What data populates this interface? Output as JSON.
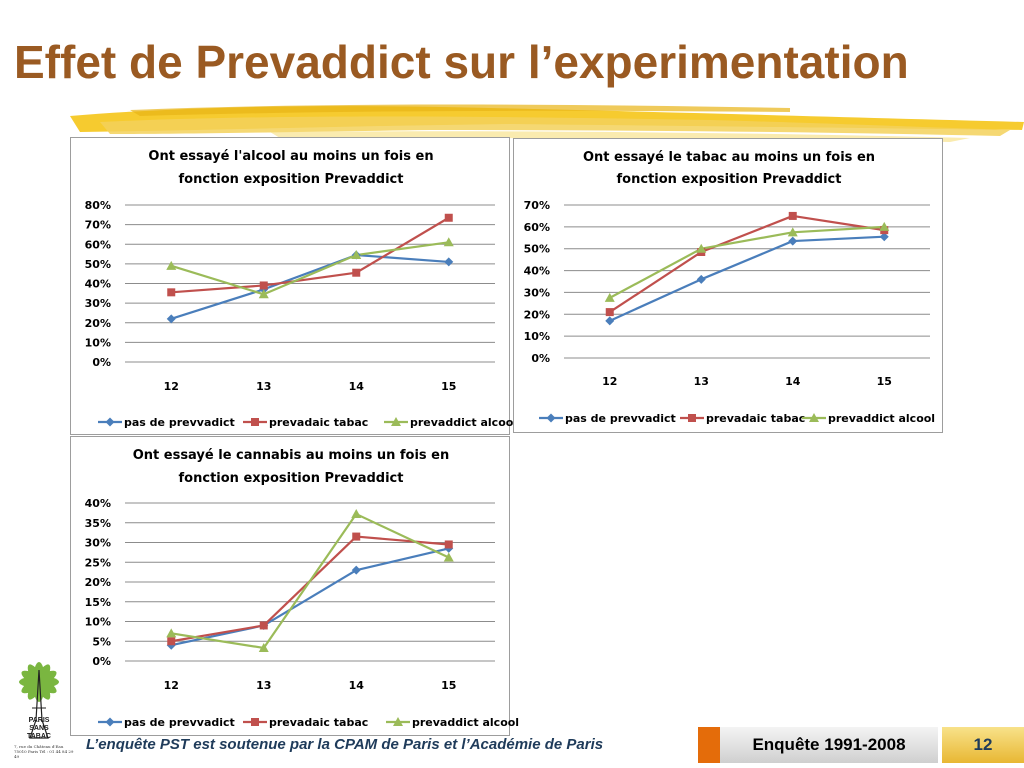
{
  "slide": {
    "title": "Effet de Prevaddict sur l’experimentation",
    "footer_note": "L’enquête PST est soutenue par la CPAM de Paris et l’Académie de Paris",
    "survey_label": "Enquête 1991-2008",
    "page_number": "12",
    "logo": {
      "text_lines": [
        "PARIS",
        "SANS",
        "TABAC"
      ],
      "address": "7, rue du Château d'Eau 75010 Paris Tél : 01 44 84 29 49"
    },
    "colors": {
      "title": "#9a5a22",
      "underline": "#f2c230",
      "accent_orange": "#e46c0a",
      "page_box": "#f0c53e"
    }
  },
  "chart_data": [
    {
      "type": "line",
      "title_lines": [
        "Ont  essayé l'alcool au moins un fois en",
        "fonction exposition Prevaddict"
      ],
      "categories": [
        "12",
        "13",
        "14",
        "15"
      ],
      "ylim": [
        0,
        0.8
      ],
      "yticks": [
        0,
        0.1,
        0.2,
        0.3,
        0.4,
        0.5,
        0.6,
        0.7,
        0.8
      ],
      "ytick_labels": [
        "0%",
        "10%",
        "20%",
        "30%",
        "40%",
        "50%",
        "60%",
        "70%",
        "80%"
      ],
      "grid": true,
      "legend_position": "bottom",
      "series": [
        {
          "name": "pas de prevvadict",
          "color": "#4a7ebb",
          "marker": "diamond",
          "values": [
            0.22,
            0.37,
            0.545,
            0.51
          ]
        },
        {
          "name": "prevadaic tabac",
          "color": "#c0504d",
          "marker": "square",
          "values": [
            0.355,
            0.39,
            0.455,
            0.735
          ]
        },
        {
          "name": "prevaddict alcool",
          "color": "#9bbb59",
          "marker": "triangle",
          "values": [
            0.49,
            0.345,
            0.545,
            0.61
          ]
        }
      ]
    },
    {
      "type": "line",
      "title_lines": [
        "Ont  essayé le tabac au moins un fois en",
        "fonction exposition Prevaddict"
      ],
      "categories": [
        "12",
        "13",
        "14",
        "15"
      ],
      "ylim": [
        0,
        0.7
      ],
      "yticks": [
        0,
        0.1,
        0.2,
        0.3,
        0.4,
        0.5,
        0.6,
        0.7
      ],
      "ytick_labels": [
        "0%",
        "10%",
        "20%",
        "30%",
        "40%",
        "50%",
        "60%",
        "70%"
      ],
      "grid": true,
      "legend_position": "bottom",
      "series": [
        {
          "name": "pas de prevvadict",
          "color": "#4a7ebb",
          "marker": "diamond",
          "values": [
            0.17,
            0.36,
            0.535,
            0.555
          ]
        },
        {
          "name": "prevadaic tabac",
          "color": "#c0504d",
          "marker": "square",
          "values": [
            0.21,
            0.485,
            0.65,
            0.585
          ]
        },
        {
          "name": "prevaddict alcool",
          "color": "#9bbb59",
          "marker": "triangle",
          "values": [
            0.275,
            0.5,
            0.575,
            0.6
          ]
        }
      ]
    },
    {
      "type": "line",
      "title_lines": [
        "Ont  essayé le cannabis au moins un fois en",
        "fonction exposition Prevaddict"
      ],
      "categories": [
        "12",
        "13",
        "14",
        "15"
      ],
      "ylim": [
        0,
        0.4
      ],
      "yticks": [
        0,
        0.05,
        0.1,
        0.15,
        0.2,
        0.25,
        0.3,
        0.35,
        0.4
      ],
      "ytick_labels": [
        "0%",
        "5%",
        "10%",
        "15%",
        "20%",
        "25%",
        "30%",
        "35%",
        "40%"
      ],
      "grid": true,
      "legend_position": "bottom",
      "series": [
        {
          "name": "pas de prevvadict",
          "color": "#4a7ebb",
          "marker": "diamond",
          "values": [
            0.04,
            0.09,
            0.23,
            0.285
          ]
        },
        {
          "name": "prevadaic tabac",
          "color": "#c0504d",
          "marker": "square",
          "values": [
            0.05,
            0.09,
            0.315,
            0.295
          ]
        },
        {
          "name": "prevaddict alcool",
          "color": "#9bbb59",
          "marker": "triangle",
          "values": [
            0.07,
            0.033,
            0.372,
            0.262
          ]
        }
      ]
    }
  ]
}
